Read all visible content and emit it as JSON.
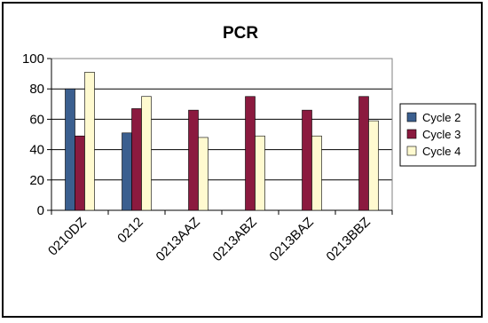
{
  "chart_data": {
    "type": "bar",
    "title": "PCR",
    "xlabel": "",
    "ylabel": "",
    "categories": [
      "0210DZ",
      "0212",
      "0213AAZ",
      "0213ABZ",
      "0213BAZ",
      "0213BBZ"
    ],
    "series": [
      {
        "name": "Cycle 2",
        "color": "#3b5f8f",
        "values": [
          80,
          51,
          null,
          null,
          null,
          null
        ]
      },
      {
        "name": "Cycle 3",
        "color": "#8b1a3f",
        "values": [
          49,
          67,
          66,
          75,
          66,
          75
        ]
      },
      {
        "name": "Cycle 4",
        "color": "#fffad0",
        "values": [
          91,
          75,
          48,
          49,
          49,
          59
        ]
      }
    ],
    "ylim": [
      0,
      100
    ],
    "yticks": [
      0,
      20,
      40,
      60,
      80,
      100
    ],
    "grid": true,
    "legend_position": "right"
  }
}
